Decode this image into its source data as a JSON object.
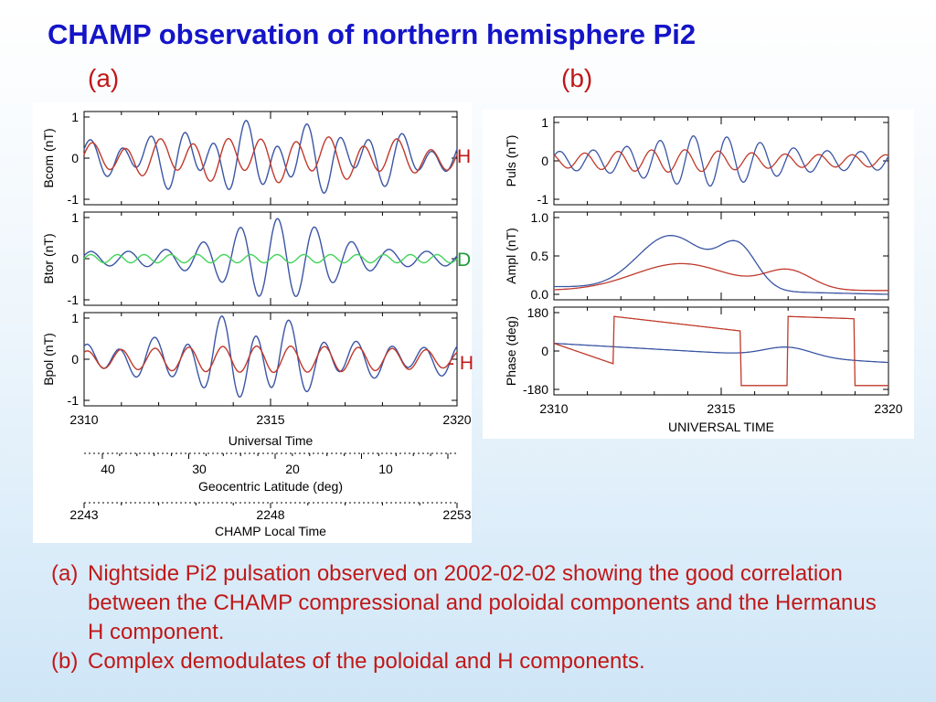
{
  "title": "CHAMP observation of northern hemisphere Pi2",
  "panel_labels": {
    "a": "(a)",
    "b": "(b)"
  },
  "side_labels": [
    {
      "text": "H",
      "color": "#c01818"
    },
    {
      "text": "D",
      "color": "#1e9a3a"
    },
    {
      "text": "- H",
      "color": "#c01818"
    }
  ],
  "colors": {
    "red": "#c0392b",
    "blue": "#3a55a4",
    "green": "#43d35a",
    "title": "#1414c8",
    "caption": "#c01818"
  },
  "chart_data": [
    {
      "id": "a",
      "type": "line",
      "panels": [
        {
          "ylabel": "Bcom (nT)",
          "ylim": [
            -1,
            1
          ],
          "yticks": [
            "1",
            "0",
            "-1"
          ],
          "series": [
            "blue",
            "red"
          ]
        },
        {
          "ylabel": "Btor (nT)",
          "ylim": [
            -1,
            1
          ],
          "yticks": [
            "1",
            "0",
            "-1"
          ],
          "series": [
            "blue",
            "green"
          ]
        },
        {
          "ylabel": "Bpol (nT)",
          "ylim": [
            -1,
            1
          ],
          "yticks": [
            "1",
            "0",
            "-1"
          ],
          "series": [
            "blue",
            "red"
          ]
        }
      ],
      "x_axis": {
        "range": [
          2310,
          2320
        ],
        "ticks": [
          "2310",
          "2315",
          "2320"
        ],
        "label": "Universal Time"
      },
      "secondary_axes": [
        {
          "ticks": [
            "40",
            "30",
            "20",
            "10"
          ],
          "label": "Geocentric Latitude (deg)"
        },
        {
          "ticks": [
            "2243",
            "2248",
            "2253"
          ],
          "label": "CHAMP Local Time"
        }
      ]
    },
    {
      "id": "b",
      "type": "line",
      "panels": [
        {
          "ylabel": "Puls (nT)",
          "ylim": [
            -1,
            1
          ],
          "yticks": [
            "1",
            "0",
            "-1"
          ],
          "series": [
            "blue",
            "red"
          ]
        },
        {
          "ylabel": "Ampl (nT)",
          "ylim": [
            0,
            1
          ],
          "yticks": [
            "1.0",
            "0.5",
            "0.0"
          ],
          "series": [
            "blue",
            "red"
          ]
        },
        {
          "ylabel": "Phase (deg)",
          "ylim": [
            -180,
            180
          ],
          "yticks": [
            "180",
            "0",
            "-180"
          ],
          "series": [
            "blue",
            "red"
          ]
        }
      ],
      "x_axis": {
        "range": [
          2310,
          2320
        ],
        "ticks": [
          "2310",
          "2315",
          "2320"
        ],
        "label": "UNIVERSAL TIME"
      }
    }
  ],
  "caption": [
    {
      "key": "(a)",
      "text": "Nightside Pi2 pulsation observed on 2002-02-02 showing the good correlation between the CHAMP compressional and poloidal components and the Hermanus H component."
    },
    {
      "key": "(b)",
      "text": "Complex demodulates of the poloidal and H components."
    }
  ]
}
